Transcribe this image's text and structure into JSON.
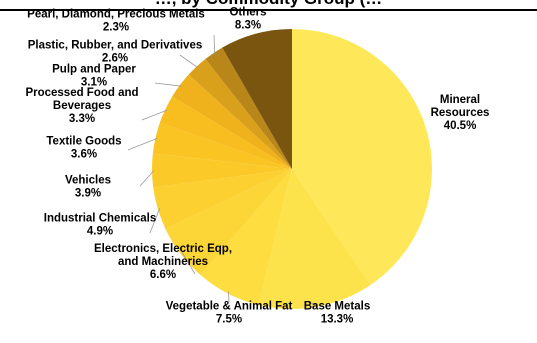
{
  "chart_data": {
    "type": "pie",
    "title": "…, by Commodity Group (…",
    "slices": [
      {
        "label": [
          "Mineral",
          "Resources"
        ],
        "value": 40.5,
        "value_label": "40.5%",
        "color": "#fee85a"
      },
      {
        "label": [
          "Base Metals"
        ],
        "value": 13.3,
        "value_label": "13.3%",
        "color": "#fde34b"
      },
      {
        "label": [
          "Vegetable & Animal Fat"
        ],
        "value": 7.5,
        "value_label": "7.5%",
        "color": "#fddd40"
      },
      {
        "label": [
          "Electronics, Electric Eqp,",
          "and Machineries"
        ],
        "value": 6.6,
        "value_label": "6.6%",
        "color": "#fcd637"
      },
      {
        "label": [
          "Industrial Chemicals"
        ],
        "value": 4.9,
        "value_label": "4.9%",
        "color": "#fbd030"
      },
      {
        "label": [
          "Vehicles"
        ],
        "value": 3.9,
        "value_label": "3.9%",
        "color": "#fbca28"
      },
      {
        "label": [
          "Textile Goods"
        ],
        "value": 3.6,
        "value_label": "3.6%",
        "color": "#fac423"
      },
      {
        "label": [
          "Processed Food and",
          "Beverages"
        ],
        "value": 3.3,
        "value_label": "3.3%",
        "color": "#f8bd1e"
      },
      {
        "label": [
          "Pulp and Paper"
        ],
        "value": 3.1,
        "value_label": "3.1%",
        "color": "#efb21c"
      },
      {
        "label": [
          "Plastic, Rubber, and Derivatives"
        ],
        "value": 2.6,
        "value_label": "2.6%",
        "color": "#d9a01c"
      },
      {
        "label": [
          "Pearl, Diamond, Precious Metals"
        ],
        "value": 2.3,
        "value_label": "2.3%",
        "color": "#b9861a"
      },
      {
        "label": [
          "Others"
        ],
        "value": 8.3,
        "value_label": "8.3%",
        "color": "#7a5510"
      }
    ]
  }
}
